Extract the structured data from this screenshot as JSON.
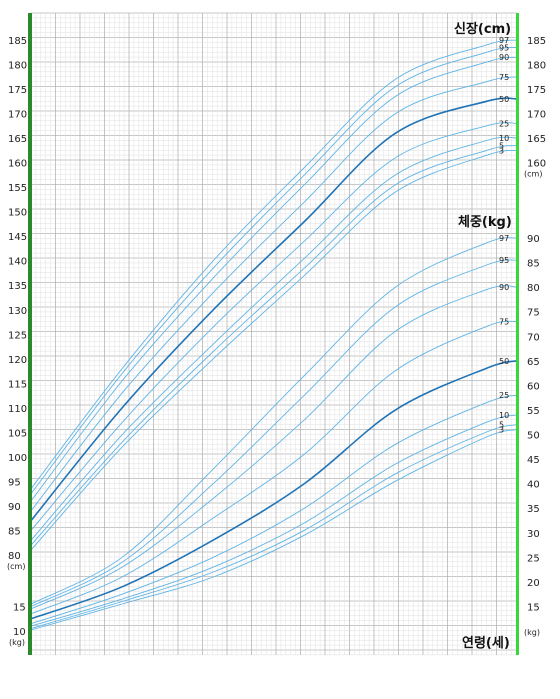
{
  "chart_data": {
    "type": "line",
    "title": "",
    "height": {
      "label": "신장(cm)",
      "unit": "(cm)",
      "ylim": [
        80,
        185
      ],
      "tick_values": [
        80,
        85,
        90,
        95,
        100,
        105,
        110,
        115,
        120,
        125,
        130,
        135,
        140,
        145,
        150,
        155,
        160,
        165,
        170,
        175,
        180,
        185
      ],
      "right_tick_values": [
        160,
        165,
        170,
        175,
        180,
        185
      ],
      "percentile_labels": [
        "97",
        "95",
        "90",
        "75",
        "50",
        "25",
        "10",
        "5",
        "3"
      ],
      "series": [
        {
          "name": "97",
          "ages": [
            2,
            5,
            8,
            11,
            14,
            17,
            18
          ],
          "values": [
            93.5,
            118,
            140,
            159,
            177,
            184,
            185
          ]
        },
        {
          "name": "95",
          "ages": [
            2,
            5,
            8,
            11,
            14,
            17,
            18
          ],
          "values": [
            92.5,
            117,
            138.5,
            157.5,
            175.5,
            182.5,
            183.5
          ]
        },
        {
          "name": "90",
          "ages": [
            2,
            5,
            8,
            11,
            14,
            17,
            18
          ],
          "values": [
            91,
            115.5,
            136.5,
            155.5,
            173.5,
            180.5,
            181.5
          ]
        },
        {
          "name": "75",
          "ages": [
            2,
            5,
            8,
            11,
            14,
            17,
            18
          ],
          "values": [
            89,
            113,
            133.5,
            152,
            170,
            176.5,
            177.5
          ]
        },
        {
          "name": "50",
          "ages": [
            2,
            5,
            8,
            11,
            14,
            17,
            18
          ],
          "values": [
            87,
            110,
            130,
            148,
            166,
            172.5,
            173
          ]
        },
        {
          "name": "25",
          "ages": [
            2,
            5,
            8,
            11,
            14,
            17,
            18
          ],
          "values": [
            85,
            107,
            126.5,
            144,
            161,
            167.5,
            168
          ]
        },
        {
          "name": "10",
          "ages": [
            2,
            5,
            8,
            11,
            14,
            17,
            18
          ],
          "values": [
            83,
            104.5,
            123,
            140.5,
            157.5,
            164.5,
            165
          ]
        },
        {
          "name": "5",
          "ages": [
            2,
            5,
            8,
            11,
            14,
            17,
            18
          ],
          "values": [
            82,
            103,
            121.5,
            138.5,
            155.5,
            162.5,
            163.5
          ]
        },
        {
          "name": "3",
          "ages": [
            2,
            5,
            8,
            11,
            14,
            17,
            18
          ],
          "values": [
            81,
            102,
            120,
            137,
            154,
            161.5,
            162.5
          ]
        }
      ]
    },
    "weight": {
      "label": "체중(kg)",
      "unit": "(kg)",
      "ylim": [
        10,
        90
      ],
      "left_tick_values": [
        10,
        15
      ],
      "right_tick_values": [
        15,
        20,
        25,
        30,
        35,
        40,
        45,
        50,
        55,
        60,
        65,
        70,
        75,
        80,
        85,
        90
      ],
      "percentile_labels": [
        "97",
        "95",
        "90",
        "75",
        "50",
        "25",
        "10",
        "5",
        "3"
      ],
      "series": [
        {
          "name": "97",
          "ages": [
            2,
            5,
            8,
            11,
            14,
            17,
            18
          ],
          "values": [
            15.5,
            25,
            43,
            62,
            80,
            89,
            90
          ]
        },
        {
          "name": "95",
          "ages": [
            2,
            5,
            8,
            11,
            14,
            17,
            18
          ],
          "values": [
            15,
            24,
            40,
            58,
            76,
            84.5,
            85.5
          ]
        },
        {
          "name": "90",
          "ages": [
            2,
            5,
            8,
            11,
            14,
            17,
            18
          ],
          "values": [
            14.5,
            23,
            37,
            53,
            71,
            79.5,
            80
          ]
        },
        {
          "name": "75",
          "ages": [
            2,
            5,
            8,
            11,
            14,
            17,
            18
          ],
          "values": [
            13.5,
            21,
            33,
            46,
            63,
            72,
            73
          ]
        },
        {
          "name": "50",
          "ages": [
            2,
            5,
            8,
            11,
            14,
            17,
            18
          ],
          "values": [
            12.5,
            19,
            28.5,
            40,
            55,
            63.5,
            65
          ]
        },
        {
          "name": "25",
          "ages": [
            2,
            5,
            8,
            11,
            14,
            17,
            18
          ],
          "values": [
            11.5,
            17.5,
            25,
            35,
            48,
            56.5,
            58
          ]
        },
        {
          "name": "10",
          "ages": [
            2,
            5,
            8,
            11,
            14,
            17,
            18
          ],
          "values": [
            11,
            16.5,
            23,
            32,
            44,
            52.5,
            54
          ]
        },
        {
          "name": "5",
          "ages": [
            2,
            5,
            8,
            11,
            14,
            17,
            18
          ],
          "values": [
            10.5,
            16,
            22,
            30.5,
            42,
            50.5,
            52
          ]
        },
        {
          "name": "3",
          "ages": [
            2,
            5,
            8,
            11,
            14,
            17,
            18
          ],
          "values": [
            10.2,
            15.5,
            21,
            29.5,
            40.5,
            49.5,
            51
          ]
        }
      ]
    },
    "xlabel": "연령(세)",
    "xlim": [
      2,
      18
    ],
    "grid": true,
    "colors": {
      "curve": "#5fb4e6",
      "median_curve": "#1f73b7",
      "grid_major": "#b5b5b5",
      "grid_minor": "#e0e0e0",
      "left_border": "#2a8a2a",
      "right_border": "#38d838"
    }
  }
}
